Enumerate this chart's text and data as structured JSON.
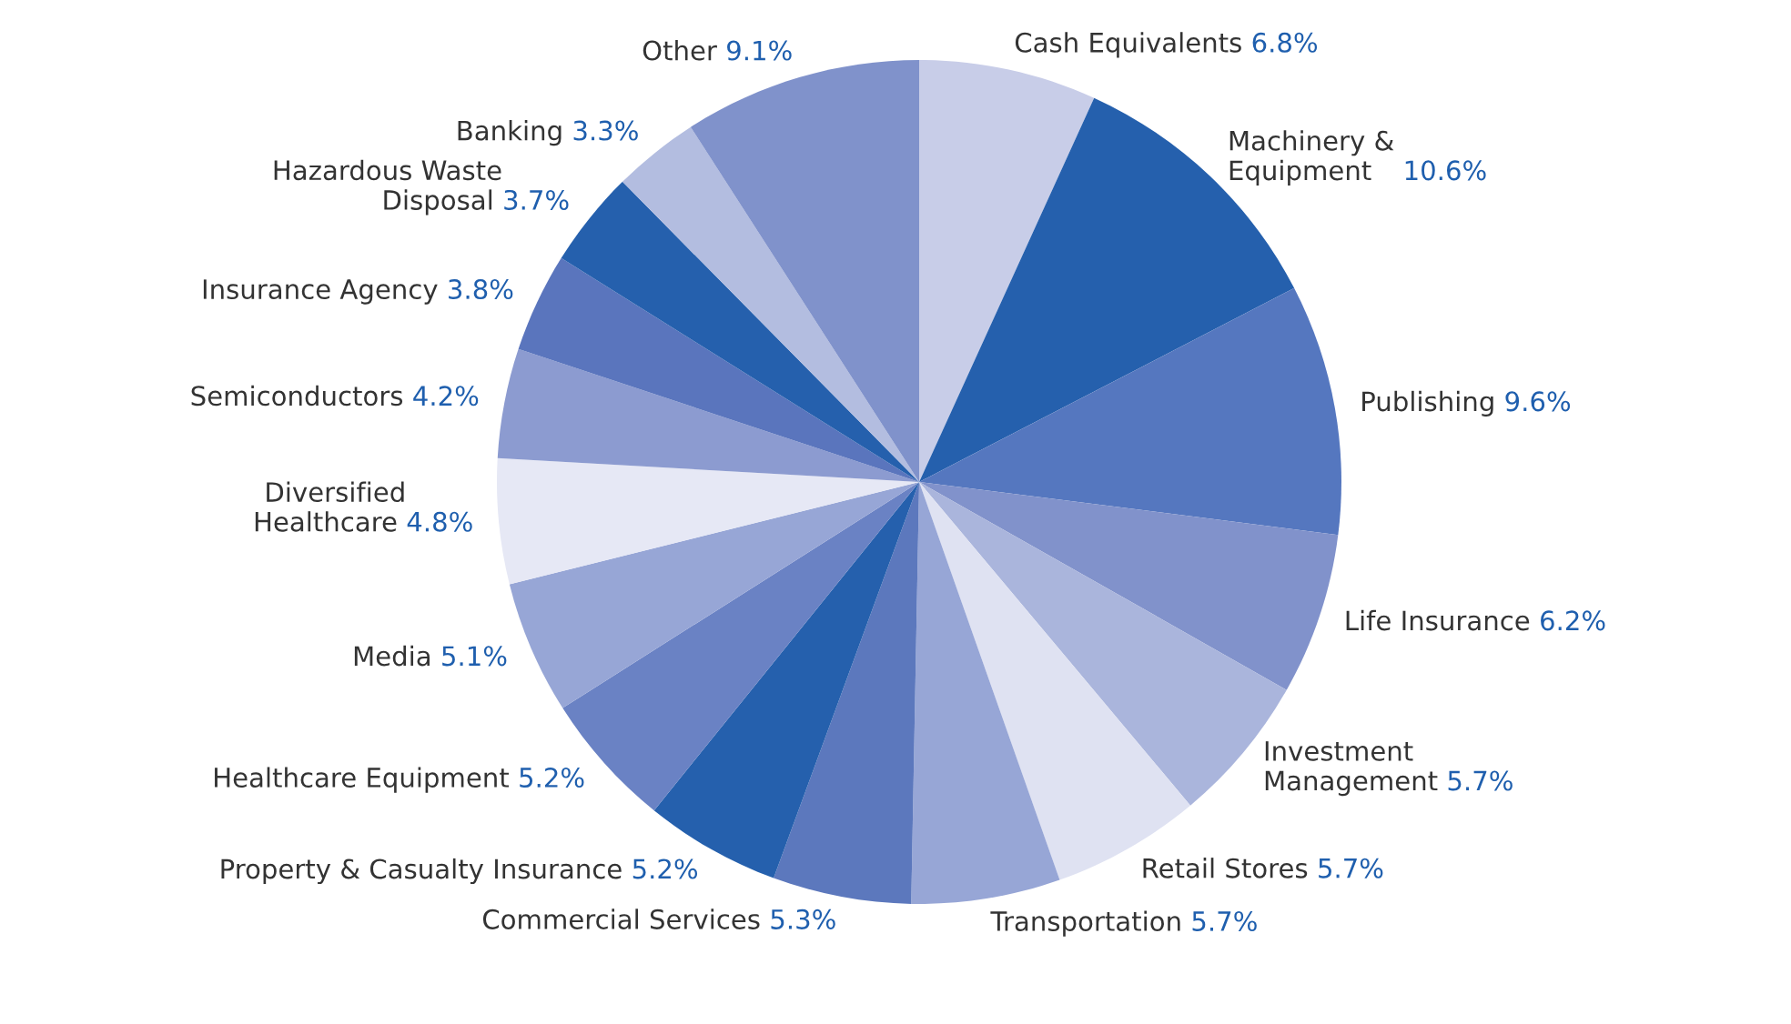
{
  "chart_data": {
    "type": "pie",
    "categories": [
      "Cash Equivalents",
      "Machinery &\nEquipment",
      "Publishing",
      "Life Insurance",
      "Investment\nManagement",
      "Retail Stores",
      "Transportation",
      "Commercial Services",
      "Property & Casualty Insurance",
      "Healthcare Equipment",
      "Media",
      "Diversified\nHealthcare",
      "Semiconductors",
      "Insurance Agency",
      "Hazardous Waste\nDisposal",
      "Banking",
      "Other"
    ],
    "values": [
      6.8,
      10.6,
      9.6,
      6.2,
      5.7,
      5.7,
      5.7,
      5.3,
      5.2,
      5.2,
      5.1,
      4.8,
      4.2,
      3.8,
      3.7,
      3.3,
      9.1
    ],
    "value_labels": [
      "6.8%",
      "10.6%",
      "9.6%",
      "6.2%",
      "5.7%",
      "5.7%",
      "5.7%",
      "5.3%",
      "5.2%",
      "5.2%",
      "5.1%",
      "4.8%",
      "4.2%",
      "3.8%",
      "3.7%",
      "3.3%",
      "9.1%"
    ],
    "colors": [
      "#c8cde8",
      "#2560ad",
      "#5577bf",
      "#8192cb",
      "#aab5dc",
      "#dfe2f2",
      "#97a6d6",
      "#5c78bd",
      "#2560ad",
      "#6a82c4",
      "#97a6d6",
      "#e6e8f5",
      "#8c9bd0",
      "#5a75bd",
      "#2560ad",
      "#b3bde0",
      "#8092cb"
    ],
    "legend": false
  }
}
